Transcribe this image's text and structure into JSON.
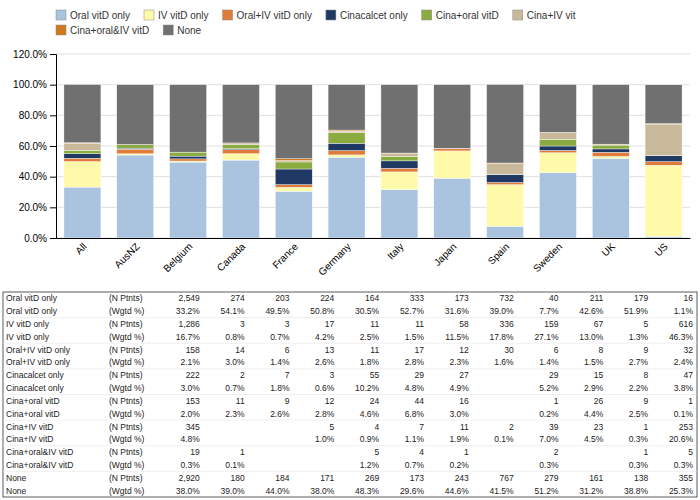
{
  "chart_data": {
    "type": "bar",
    "stacked": true,
    "grid": true,
    "legend": "top",
    "categories": [
      "All",
      "AusNZ",
      "Belgium",
      "Canada",
      "France",
      "Germany",
      "Italy",
      "Japan",
      "Spain",
      "Sweden",
      "UK",
      "US"
    ],
    "series": [
      {
        "name": "Oral vitD only",
        "color": "#aac4e0",
        "values": [
          33.2,
          54.1,
          49.5,
          50.8,
          30.5,
          52.7,
          31.6,
          39.0,
          7.7,
          42.6,
          51.9,
          1.1
        ]
      },
      {
        "name": "IV vitD only",
        "color": "#fffaaa",
        "values": [
          16.7,
          0.8,
          0.7,
          4.2,
          2.5,
          1.5,
          11.5,
          17.8,
          27.1,
          13.0,
          1.3,
          46.3
        ]
      },
      {
        "name": "Oral+IV vitD only",
        "color": "#e07b39",
        "values": [
          2.1,
          3.0,
          1.4,
          2.6,
          1.8,
          2.8,
          2.3,
          1.6,
          1.4,
          1.5,
          2.7,
          2.4
        ]
      },
      {
        "name": "Cinacalcet only",
        "color": "#1f3864",
        "values": [
          3.0,
          0.7,
          1.8,
          0.6,
          10.2,
          4.8,
          4.9,
          0.0,
          5.2,
          2.9,
          2.2,
          3.8
        ]
      },
      {
        "name": "Cina+oral vitD",
        "color": "#8aab40",
        "values": [
          2.0,
          2.3,
          2.6,
          2.8,
          4.6,
          6.8,
          3.0,
          0.0,
          0.2,
          4.4,
          2.5,
          0.1
        ]
      },
      {
        "name": "Cina+IV vit",
        "color": "#c8b99a",
        "values": [
          4.8,
          0.0,
          0.0,
          1.0,
          0.9,
          1.1,
          1.9,
          0.1,
          7.0,
          4.5,
          0.3,
          20.6
        ]
      },
      {
        "name": "Cina+oral&IV vitD",
        "color": "#d07820",
        "values": [
          0.3,
          0.1,
          0.0,
          0.0,
          1.2,
          0.7,
          0.2,
          0.0,
          0.3,
          0.0,
          0.3,
          0.3
        ]
      },
      {
        "name": "None",
        "color": "#707070",
        "values": [
          38.0,
          39.0,
          44.0,
          38.0,
          48.3,
          29.6,
          44.6,
          41.5,
          51.2,
          31.2,
          38.8,
          25.3
        ]
      }
    ],
    "ylim": [
      0,
      120
    ],
    "yticks": [
      {
        "value": 0,
        "label": "0.0%"
      },
      {
        "value": 20,
        "label": "20.0%"
      },
      {
        "value": 40,
        "label": "40.0%"
      },
      {
        "value": 60,
        "label": "60.0%"
      },
      {
        "value": 80,
        "label": "80.0%"
      },
      {
        "value": 100,
        "label": "100.0%"
      },
      {
        "value": 120,
        "label": "120.0%"
      }
    ],
    "table_rows": [
      [
        "Oral vitD only",
        "(N Ptnts)",
        "2,549",
        "274",
        "203",
        "224",
        "164",
        "333",
        "173",
        "732",
        "40",
        "211",
        "179",
        "16"
      ],
      [
        "Oral vitD only",
        "(Wgtd %)",
        "33.2%",
        "54.1%",
        "49.5%",
        "50.8%",
        "30.5%",
        "52.7%",
        "31.6%",
        "39.0%",
        "7.7%",
        "42.6%",
        "51.9%",
        "1.1%"
      ],
      [
        "IV vitD only",
        "(N Ptnts)",
        "1,286",
        "3",
        "3",
        "17",
        "11",
        "11",
        "58",
        "336",
        "159",
        "67",
        "5",
        "616"
      ],
      [
        "IV vitD only",
        "(Wgtd %)",
        "16.7%",
        "0.8%",
        "0.7%",
        "4.2%",
        "2.5%",
        "1.5%",
        "11.5%",
        "17.8%",
        "27.1%",
        "13.0%",
        "1.3%",
        "46.3%"
      ],
      [
        "Oral+IV vitD only",
        "(N Ptnts)",
        "158",
        "14",
        "6",
        "13",
        "11",
        "17",
        "12",
        "30",
        "6",
        "8",
        "9",
        "32"
      ],
      [
        "Oral+IV vitD only",
        "(Wgtd %)",
        "2.1%",
        "3.0%",
        "1.4%",
        "2.6%",
        "1.8%",
        "2.8%",
        "2.3%",
        "1.6%",
        "1.4%",
        "1.5%",
        "2.7%",
        "2.4%"
      ],
      [
        "Cinacalcet only",
        "(N Ptnts)",
        "222",
        "2",
        "7",
        "3",
        "55",
        "29",
        "27",
        null,
        "29",
        "15",
        "8",
        "47"
      ],
      [
        "Cinacalcet only",
        "(Wgtd %)",
        "3.0%",
        "0.7%",
        "1.8%",
        "0.6%",
        "10.2%",
        "4.8%",
        "4.9%",
        null,
        "5.2%",
        "2.9%",
        "2.2%",
        "3.8%"
      ],
      [
        "Cina+oral vitD",
        "(N Ptnts)",
        "153",
        "11",
        "9",
        "12",
        "24",
        "44",
        "16",
        null,
        "1",
        "26",
        "9",
        "1"
      ],
      [
        "Cina+oral vitD",
        "(Wgtd %)",
        "2.0%",
        "2.3%",
        "2.6%",
        "2.8%",
        "4.6%",
        "6.8%",
        "3.0%",
        null,
        "0.2%",
        "4.4%",
        "2.5%",
        "0.1%"
      ],
      [
        "Cina+IV vitD",
        "(N Ptnts)",
        "345",
        null,
        null,
        "5",
        "4",
        "7",
        "11",
        "2",
        "39",
        "23",
        "1",
        "253"
      ],
      [
        "Cina+IV vitD",
        "(Wgtd %)",
        "4.8%",
        null,
        null,
        "1.0%",
        "0.9%",
        "1.1%",
        "1.9%",
        "0.1%",
        "7.0%",
        "4.5%",
        "0.3%",
        "20.6%"
      ],
      [
        "Cina+oral&IV vitD",
        "(N Ptnts)",
        "19",
        "1",
        null,
        null,
        "5",
        "4",
        "1",
        null,
        "2",
        null,
        "1",
        "5"
      ],
      [
        "Cina+oral&IV vitD",
        "(Wgtd %)",
        "0.3%",
        "0.1%",
        null,
        null,
        "1.2%",
        "0.7%",
        "0.2%",
        null,
        "0.3%",
        null,
        "0.3%",
        "0.3%"
      ],
      [
        "None",
        "(N Ptnts)",
        "2,920",
        "180",
        "184",
        "171",
        "269",
        "173",
        "243",
        "767",
        "279",
        "161",
        "138",
        "355"
      ],
      [
        "None",
        "(Wgtd %)",
        "38.0%",
        "39.0%",
        "44.0%",
        "38.0%",
        "48.3%",
        "29.6%",
        "44.6%",
        "41.5%",
        "51.2%",
        "31.2%",
        "38.8%",
        "25.3%"
      ]
    ]
  }
}
